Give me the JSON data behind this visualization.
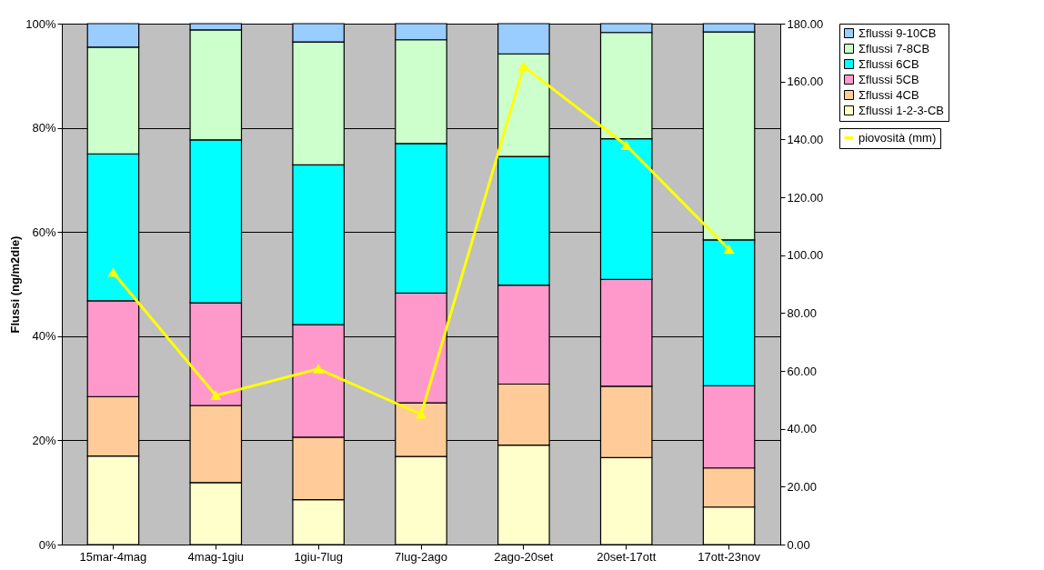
{
  "chart_data": {
    "type": "bar",
    "stacked": true,
    "ylabel": "Flussi (ng/m2die)",
    "categories": [
      "15mar-4mag",
      "4mag-1giu",
      "1giu-7lug",
      "7lug-2ago",
      "2ago-20set",
      "20set-17ott",
      "17ott-23nov"
    ],
    "ylim": [
      0,
      100
    ],
    "yticks": [
      {
        "value": 0,
        "label": "0%"
      },
      {
        "value": 20,
        "label": "20%"
      },
      {
        "value": 40,
        "label": "40%"
      },
      {
        "value": 60,
        "label": "60%"
      },
      {
        "value": 80,
        "label": "80%"
      },
      {
        "value": 100,
        "label": "100%"
      }
    ],
    "y2lim": [
      0,
      180
    ],
    "y2ticks": [
      {
        "value": 0,
        "label": "0.00"
      },
      {
        "value": 20,
        "label": "20.00"
      },
      {
        "value": 40,
        "label": "40.00"
      },
      {
        "value": 60,
        "label": "60.00"
      },
      {
        "value": 80,
        "label": "80.00"
      },
      {
        "value": 100,
        "label": "100.00"
      },
      {
        "value": 120,
        "label": "120.00"
      },
      {
        "value": 140,
        "label": "140.00"
      },
      {
        "value": 160,
        "label": "160.00"
      },
      {
        "value": 180,
        "label": "180.00"
      }
    ],
    "grid": "y",
    "legend": "right",
    "series": [
      {
        "name": "Σflussi 1-2-3-CB",
        "color": "#ffffcc",
        "values": [
          17,
          11.9,
          8.6,
          16.9,
          19.1,
          16.7,
          7.2
        ]
      },
      {
        "name": "Σflussi 4CB",
        "color": "#ffcc99",
        "values": [
          11.4,
          14.8,
          12,
          10.3,
          11.7,
          13.7,
          7.5
        ]
      },
      {
        "name": "Σflussi 5CB",
        "color": "#ff99cc",
        "values": [
          18.4,
          19.7,
          21.6,
          21.1,
          19,
          20.5,
          15.8
        ]
      },
      {
        "name": "Σflussi 6CB",
        "color": "#00ffff",
        "values": [
          28.2,
          31.3,
          30.7,
          28.7,
          24.7,
          27,
          28
        ]
      },
      {
        "name": "Σflussi 7-8CB",
        "color": "#ccffcc",
        "values": [
          20.5,
          21.1,
          23.6,
          19.9,
          19.7,
          20.4,
          39.9
        ]
      },
      {
        "name": "Σflussi 9-10CB",
        "color": "#99ccff",
        "values": [
          4.5,
          1.2,
          3.5,
          3.1,
          5.8,
          1.7,
          1.6
        ]
      },
      {
        "name": "piovosità (mm)",
        "type": "line",
        "axis": "y2",
        "color": "#ffff00",
        "marker": "triangle",
        "values": [
          94,
          51.5,
          60.7,
          45,
          165.2,
          137.9,
          102
        ]
      }
    ]
  }
}
